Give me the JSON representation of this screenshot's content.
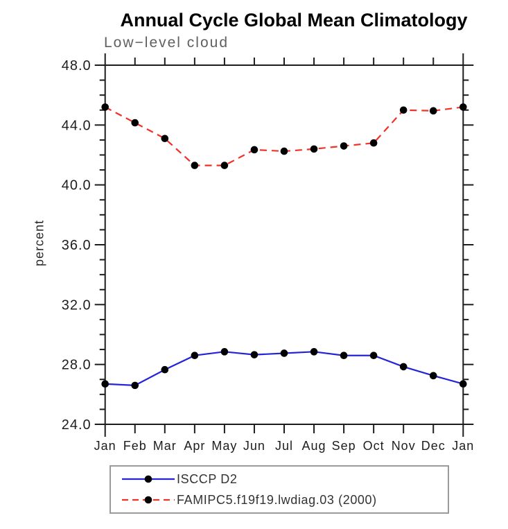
{
  "title": "Annual Cycle Global Mean Climatology",
  "colors": {
    "obs_line": "#2424d6",
    "model_line": "#ee3226",
    "marker": "#000000",
    "axis": "#1c1c1c",
    "subtitle_text": "#5f5f5f",
    "legend_border": "#9a9a9a"
  },
  "chart_data": {
    "type": "line",
    "title": "Annual Cycle Global Mean Climatology",
    "subtitle": "Low−level cloud",
    "ylabel": "percent",
    "xlabel": "",
    "categories": [
      "Jan",
      "Feb",
      "Mar",
      "Apr",
      "May",
      "Jun",
      "Jul",
      "Aug",
      "Sep",
      "Oct",
      "Nov",
      "Dec",
      "Jan"
    ],
    "series": [
      {
        "name": "ISCCP D2",
        "style": "solid",
        "color": "#2424d6",
        "values": [
          26.7,
          26.6,
          27.65,
          28.6,
          28.85,
          28.65,
          28.75,
          28.85,
          28.6,
          28.6,
          27.85,
          27.25,
          26.7
        ]
      },
      {
        "name": "FAMIPC5.f19f19.lwdiag.03 (2000)",
        "style": "dashed",
        "color": "#ee3226",
        "values": [
          45.2,
          44.15,
          43.1,
          41.3,
          41.3,
          42.35,
          42.25,
          42.4,
          42.6,
          42.8,
          45.0,
          44.95,
          45.2
        ]
      }
    ],
    "ylim": [
      24,
      48
    ],
    "yticks": [
      24,
      28,
      32,
      36,
      40,
      44,
      48
    ],
    "ytick_labels": [
      "24.0",
      "28.0",
      "32.0",
      "36.0",
      "40.0",
      "44.0",
      "48.0"
    ],
    "minor_tick_interval": 1,
    "grid": false,
    "legend_position": "bottom-left-box"
  }
}
